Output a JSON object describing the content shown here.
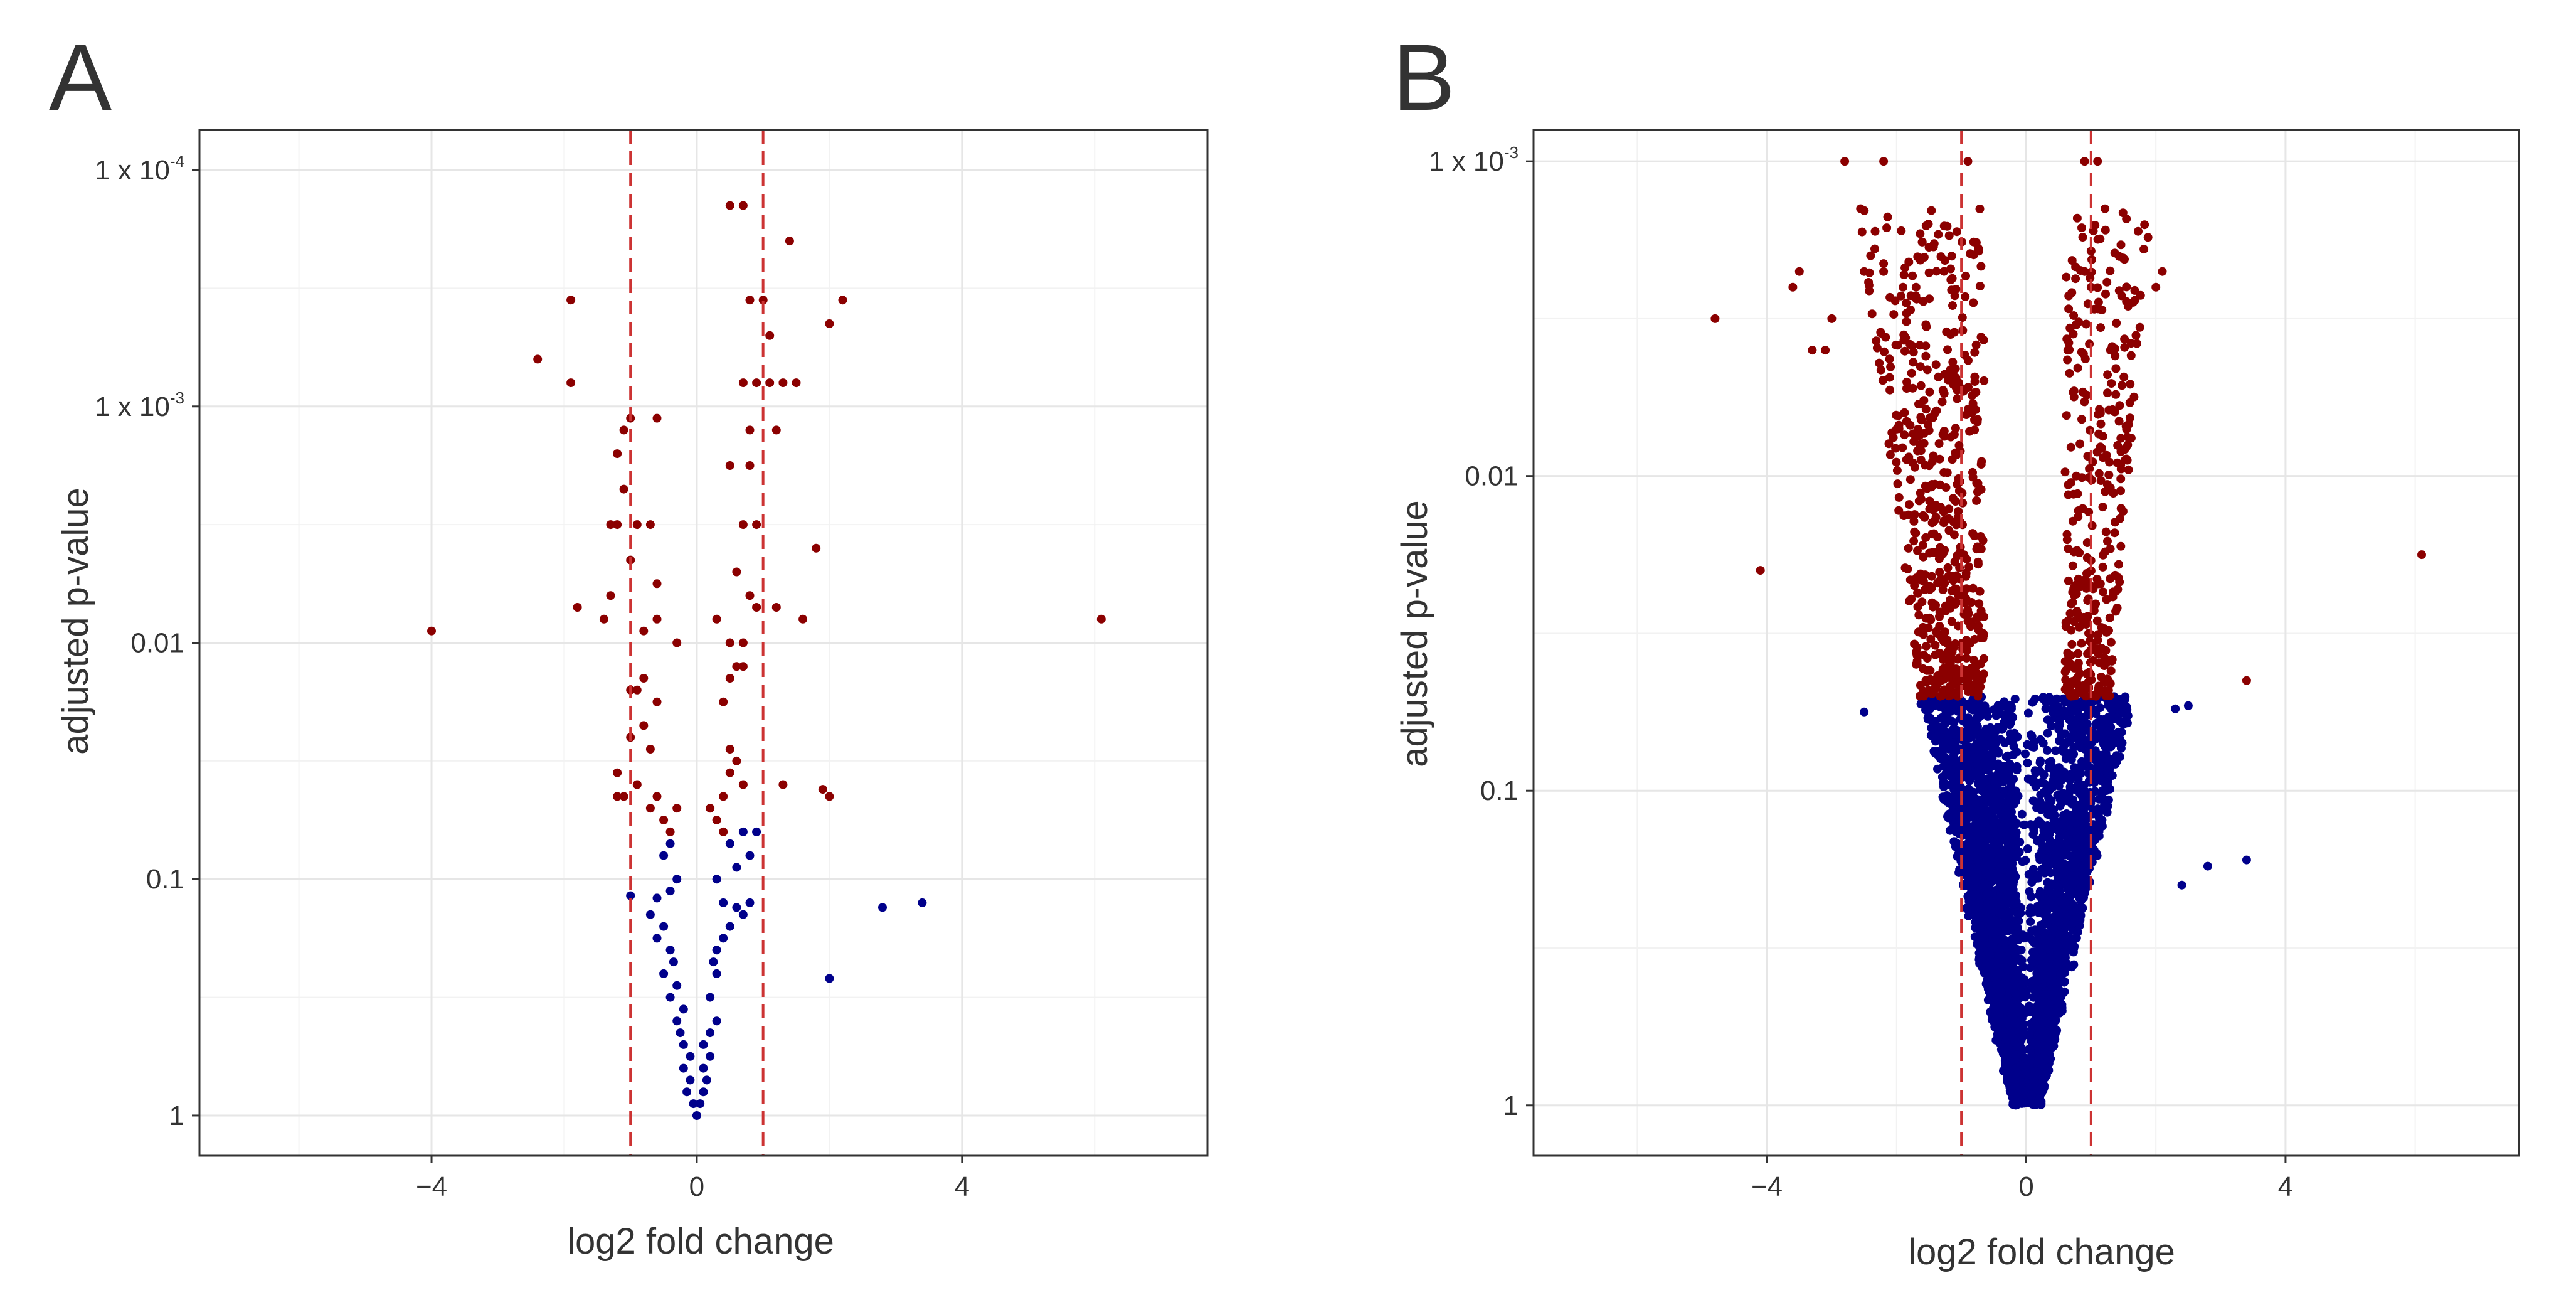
{
  "figure": {
    "panels": [
      {
        "letter": "A"
      },
      {
        "letter": "B"
      }
    ]
  },
  "chart_data": [
    {
      "type": "scatter",
      "panel": "A",
      "title": "",
      "xlabel": "log2 fold change",
      "ylabel": "adjusted p-value",
      "xlim": [
        -7.5,
        7.7
      ],
      "x_ticks": [
        -4,
        0,
        4
      ],
      "x_tick_labels": [
        "−4",
        "0",
        "4"
      ],
      "x_minor_gridlines": [
        -6,
        -2,
        2,
        6
      ],
      "ylim_log10": [
        -4.17,
        0.17
      ],
      "y_scale": "log10, reversed (smaller p-values at top)",
      "y_ticks_log10": [
        -4,
        -3,
        -2,
        -1,
        0
      ],
      "y_tick_labels": [
        {
          "text": "1 x 10",
          "sup": "-4"
        },
        {
          "text": "1 x 10",
          "sup": "-3"
        },
        {
          "text": "0.01",
          "sup": ""
        },
        {
          "text": "0.1",
          "sup": ""
        },
        {
          "text": "1",
          "sup": ""
        }
      ],
      "threshold_lines_x": [
        -1,
        1
      ],
      "significance_cutoff_log10": -1.36,
      "grid": true,
      "colors": {
        "significant": "#8B0000",
        "not_significant": "#00008B",
        "threshold": "#CC3333"
      },
      "series": [
        {
          "name": "significant",
          "points": [
            [
              0.5,
              -3.85
            ],
            [
              0.7,
              -3.85
            ],
            [
              1.4,
              -3.7
            ],
            [
              1.0,
              -3.45
            ],
            [
              0.8,
              -3.45
            ],
            [
              2.2,
              -3.45
            ],
            [
              2.0,
              -3.35
            ],
            [
              1.1,
              -3.3
            ],
            [
              1.3,
              -3.1
            ],
            [
              1.1,
              -3.1
            ],
            [
              1.5,
              -3.1
            ],
            [
              0.7,
              -3.1
            ],
            [
              0.9,
              -3.1
            ],
            [
              0.8,
              -2.9
            ],
            [
              1.2,
              -2.9
            ],
            [
              0.5,
              -2.75
            ],
            [
              0.8,
              -2.75
            ],
            [
              0.9,
              -2.5
            ],
            [
              0.7,
              -2.5
            ],
            [
              0.6,
              -2.3
            ],
            [
              1.8,
              -2.4
            ],
            [
              0.8,
              -2.2
            ],
            [
              0.3,
              -2.1
            ],
            [
              0.7,
              -2.0
            ],
            [
              0.5,
              -2.0
            ],
            [
              0.6,
              -1.9
            ],
            [
              0.5,
              -1.85
            ],
            [
              0.7,
              -1.9
            ],
            [
              0.4,
              -1.75
            ],
            [
              0.5,
              -1.55
            ],
            [
              0.6,
              -1.5
            ],
            [
              0.5,
              -1.45
            ],
            [
              0.7,
              -1.4
            ],
            [
              0.4,
              -1.35
            ],
            [
              0.2,
              -1.3
            ],
            [
              0.3,
              -1.25
            ],
            [
              0.4,
              -1.2
            ],
            [
              1.3,
              -1.4
            ],
            [
              1.9,
              -1.38
            ],
            [
              2.0,
              -1.35
            ],
            [
              1.6,
              -2.1
            ],
            [
              1.2,
              -2.15
            ],
            [
              0.9,
              -2.15
            ],
            [
              6.1,
              -2.1
            ],
            [
              -4.0,
              -2.05
            ],
            [
              -1.9,
              -3.45
            ],
            [
              -2.4,
              -3.2
            ],
            [
              -1.9,
              -3.1
            ],
            [
              -1.0,
              -2.95
            ],
            [
              -1.1,
              -2.9
            ],
            [
              -0.6,
              -2.95
            ],
            [
              -1.2,
              -2.8
            ],
            [
              -1.1,
              -2.65
            ],
            [
              -1.2,
              -2.5
            ],
            [
              -1.3,
              -2.5
            ],
            [
              -0.9,
              -2.5
            ],
            [
              -0.7,
              -2.5
            ],
            [
              -1.0,
              -2.35
            ],
            [
              -0.6,
              -2.25
            ],
            [
              -1.8,
              -2.15
            ],
            [
              -1.3,
              -2.2
            ],
            [
              -1.4,
              -2.1
            ],
            [
              -0.8,
              -2.05
            ],
            [
              -0.6,
              -2.1
            ],
            [
              -0.3,
              -2.0
            ],
            [
              -1.0,
              -1.8
            ],
            [
              -0.9,
              -1.8
            ],
            [
              -0.8,
              -1.85
            ],
            [
              -0.6,
              -1.75
            ],
            [
              -0.8,
              -1.65
            ],
            [
              -1.0,
              -1.6
            ],
            [
              -0.7,
              -1.55
            ],
            [
              -1.2,
              -1.45
            ],
            [
              -1.1,
              -1.35
            ],
            [
              -0.9,
              -1.4
            ],
            [
              -0.6,
              -1.35
            ],
            [
              -0.7,
              -1.3
            ],
            [
              -0.5,
              -1.25
            ],
            [
              -0.4,
              -1.2
            ],
            [
              -0.3,
              -1.3
            ],
            [
              -1.2,
              -1.35
            ]
          ]
        },
        {
          "name": "not_significant",
          "points": [
            [
              3.4,
              -0.9
            ],
            [
              2.8,
              -0.88
            ],
            [
              2.0,
              -0.58
            ],
            [
              -1.0,
              -0.93
            ],
            [
              -0.6,
              -0.92
            ],
            [
              0.4,
              -0.9
            ],
            [
              0.8,
              -0.9
            ],
            [
              0.6,
              -0.88
            ],
            [
              0.7,
              -0.85
            ],
            [
              0.5,
              -0.8
            ],
            [
              0.4,
              -0.75
            ],
            [
              0.3,
              -0.7
            ],
            [
              0.3,
              -0.6
            ],
            [
              0.2,
              -0.5
            ],
            [
              0.3,
              -0.4
            ],
            [
              0.1,
              -0.3
            ],
            [
              0.2,
              -0.25
            ],
            [
              0.1,
              -0.2
            ],
            [
              0.1,
              -0.1
            ],
            [
              0.05,
              -0.05
            ],
            [
              0.0,
              0.0
            ],
            [
              0.5,
              -1.15
            ],
            [
              0.6,
              -1.05
            ],
            [
              0.7,
              -1.2
            ],
            [
              0.8,
              -1.1
            ],
            [
              0.9,
              -1.2
            ],
            [
              0.3,
              -1.0
            ],
            [
              -0.5,
              -1.1
            ],
            [
              -0.4,
              -1.15
            ],
            [
              -0.3,
              -1.0
            ],
            [
              -0.4,
              -0.95
            ],
            [
              -0.7,
              -0.85
            ],
            [
              -0.5,
              -0.8
            ],
            [
              -0.6,
              -0.75
            ],
            [
              -0.4,
              -0.7
            ],
            [
              -0.5,
              -0.6
            ],
            [
              -0.3,
              -0.55
            ],
            [
              -0.4,
              -0.5
            ],
            [
              -0.2,
              -0.45
            ],
            [
              -0.3,
              -0.4
            ],
            [
              -0.2,
              -0.3
            ],
            [
              -0.1,
              -0.25
            ],
            [
              -0.2,
              -0.2
            ],
            [
              -0.1,
              -0.15
            ],
            [
              -0.05,
              -0.05
            ],
            [
              -0.15,
              -0.1
            ],
            [
              0.15,
              -0.15
            ],
            [
              0.2,
              -0.35
            ],
            [
              -0.25,
              -0.35
            ],
            [
              0.25,
              -0.65
            ],
            [
              -0.35,
              -0.65
            ]
          ]
        }
      ]
    },
    {
      "type": "scatter",
      "panel": "B",
      "title": "",
      "xlabel": "log2 fold change",
      "ylabel": "adjusted p-value",
      "xlim": [
        -7.6,
        7.6
      ],
      "x_ticks": [
        -4,
        0,
        4
      ],
      "x_tick_labels": [
        "−4",
        "0",
        "4"
      ],
      "x_minor_gridlines": [
        -6,
        -2,
        2,
        6
      ],
      "ylim_log10": [
        -3.1,
        0.16
      ],
      "y_scale": "log10, reversed (smaller p-values at top)",
      "y_ticks_log10": [
        -3,
        -2,
        -1,
        0
      ],
      "y_tick_labels": [
        {
          "text": "1 x 10",
          "sup": "-3"
        },
        {
          "text": "0.01",
          "sup": ""
        },
        {
          "text": "0.1",
          "sup": ""
        },
        {
          "text": "1",
          "sup": ""
        }
      ],
      "threshold_lines_x": [
        -1,
        1
      ],
      "significance_cutoff_log10": -1.3,
      "grid": true,
      "colors": {
        "significant": "#8B0000",
        "not_significant": "#00008B",
        "threshold": "#CC3333"
      },
      "series": [
        {
          "name": "significant",
          "points": [
            [
              -2.8,
              -3.0
            ],
            [
              -2.2,
              -3.0
            ],
            [
              -0.9,
              -3.0
            ],
            [
              0.9,
              -3.0
            ],
            [
              1.1,
              -3.0
            ],
            [
              -2.4,
              -2.7
            ],
            [
              -4.8,
              -2.5
            ],
            [
              -3.6,
              -2.6
            ],
            [
              -3.5,
              -2.65
            ],
            [
              -2.5,
              -2.65
            ],
            [
              -2.2,
              -2.65
            ],
            [
              -1.9,
              -2.6
            ],
            [
              -1.7,
              -2.6
            ],
            [
              -3.0,
              -2.5
            ],
            [
              -3.3,
              -2.4
            ],
            [
              -3.1,
              -2.4
            ],
            [
              0.9,
              -2.65
            ],
            [
              1.0,
              -2.6
            ],
            [
              2.1,
              -2.65
            ],
            [
              2.0,
              -2.6
            ],
            [
              -4.1,
              -1.7
            ],
            [
              6.1,
              -1.75
            ],
            [
              3.4,
              -1.35
            ]
          ]
        },
        {
          "name": "not_significant",
          "points": [
            [
              -2.5,
              -1.25
            ],
            [
              2.3,
              -1.26
            ],
            [
              2.5,
              -1.27
            ],
            [
              2.8,
              -0.76
            ],
            [
              3.4,
              -0.78
            ],
            [
              2.4,
              -0.7
            ],
            [
              -0.7,
              -0.92
            ],
            [
              -0.5,
              -0.85
            ],
            [
              0.6,
              -0.88
            ],
            [
              0.5,
              -0.82
            ]
          ]
        }
      ],
      "cloud_note": "thousands of points forming a V-shaped volcano; significant points above the cutoff, non-significant below"
    }
  ]
}
